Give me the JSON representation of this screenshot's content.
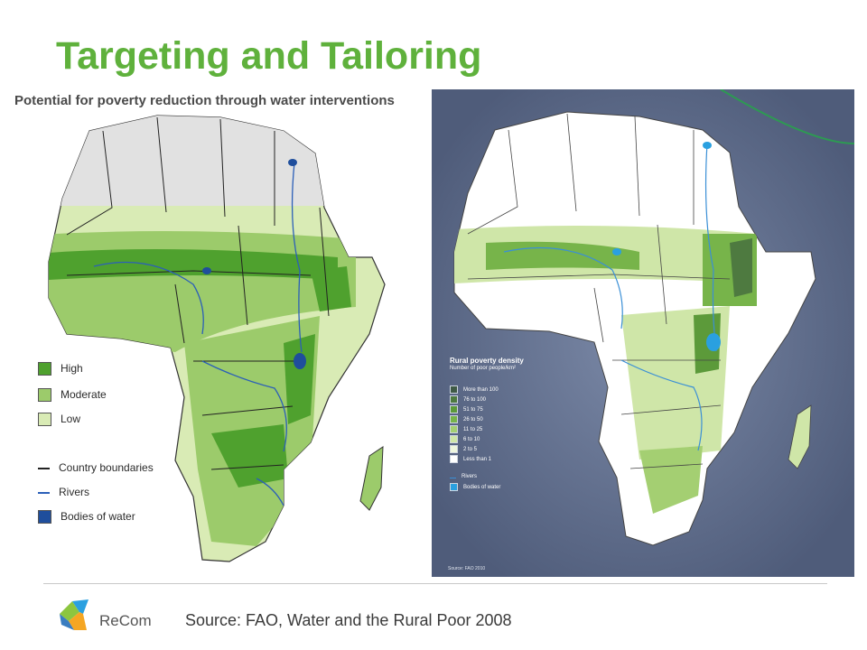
{
  "slide": {
    "title": "Targeting and Tailoring",
    "source": "Source:  FAO, Water and the Rural Poor 2008",
    "logo_text": "ReCom"
  },
  "left_map": {
    "subtitle": "Potential for poverty reduction through water interventions",
    "legend": [
      {
        "label": "High",
        "color": "#4fa12e",
        "kind": "fill"
      },
      {
        "label": "Moderate",
        "color": "#9ccb6b",
        "kind": "fill"
      },
      {
        "label": "Low",
        "color": "#d9ebb5",
        "kind": "fill"
      },
      {
        "label": "Country boundaries",
        "color": "#222222",
        "kind": "line"
      },
      {
        "label": "Rivers",
        "color": "#2b5fb8",
        "kind": "line"
      },
      {
        "label": "Bodies of water",
        "color": "#1f4e9c",
        "kind": "fill"
      }
    ]
  },
  "right_map": {
    "legend_title": "Rural poverty density",
    "legend_subtitle": "Number of poor people/km²",
    "legend": [
      {
        "label": "More than 100",
        "color": "#3f5a45"
      },
      {
        "label": "76 to 100",
        "color": "#4e7a40"
      },
      {
        "label": "51 to 75",
        "color": "#5c9a3a"
      },
      {
        "label": "26 to 50",
        "color": "#77b44a"
      },
      {
        "label": "11 to 25",
        "color": "#a4cf72"
      },
      {
        "label": "6 to 10",
        "color": "#cfe6a8"
      },
      {
        "label": "2 to 5",
        "color": "#eef6de"
      },
      {
        "label": "Less than 1",
        "color": "#ffffff"
      }
    ],
    "legend_extra": [
      {
        "label": "Rivers",
        "color": "#3a8fd6",
        "kind": "line"
      },
      {
        "label": "Bodies of water",
        "color": "#2aa0e0",
        "kind": "fill"
      }
    ],
    "source": "Source: FAO 2010"
  }
}
